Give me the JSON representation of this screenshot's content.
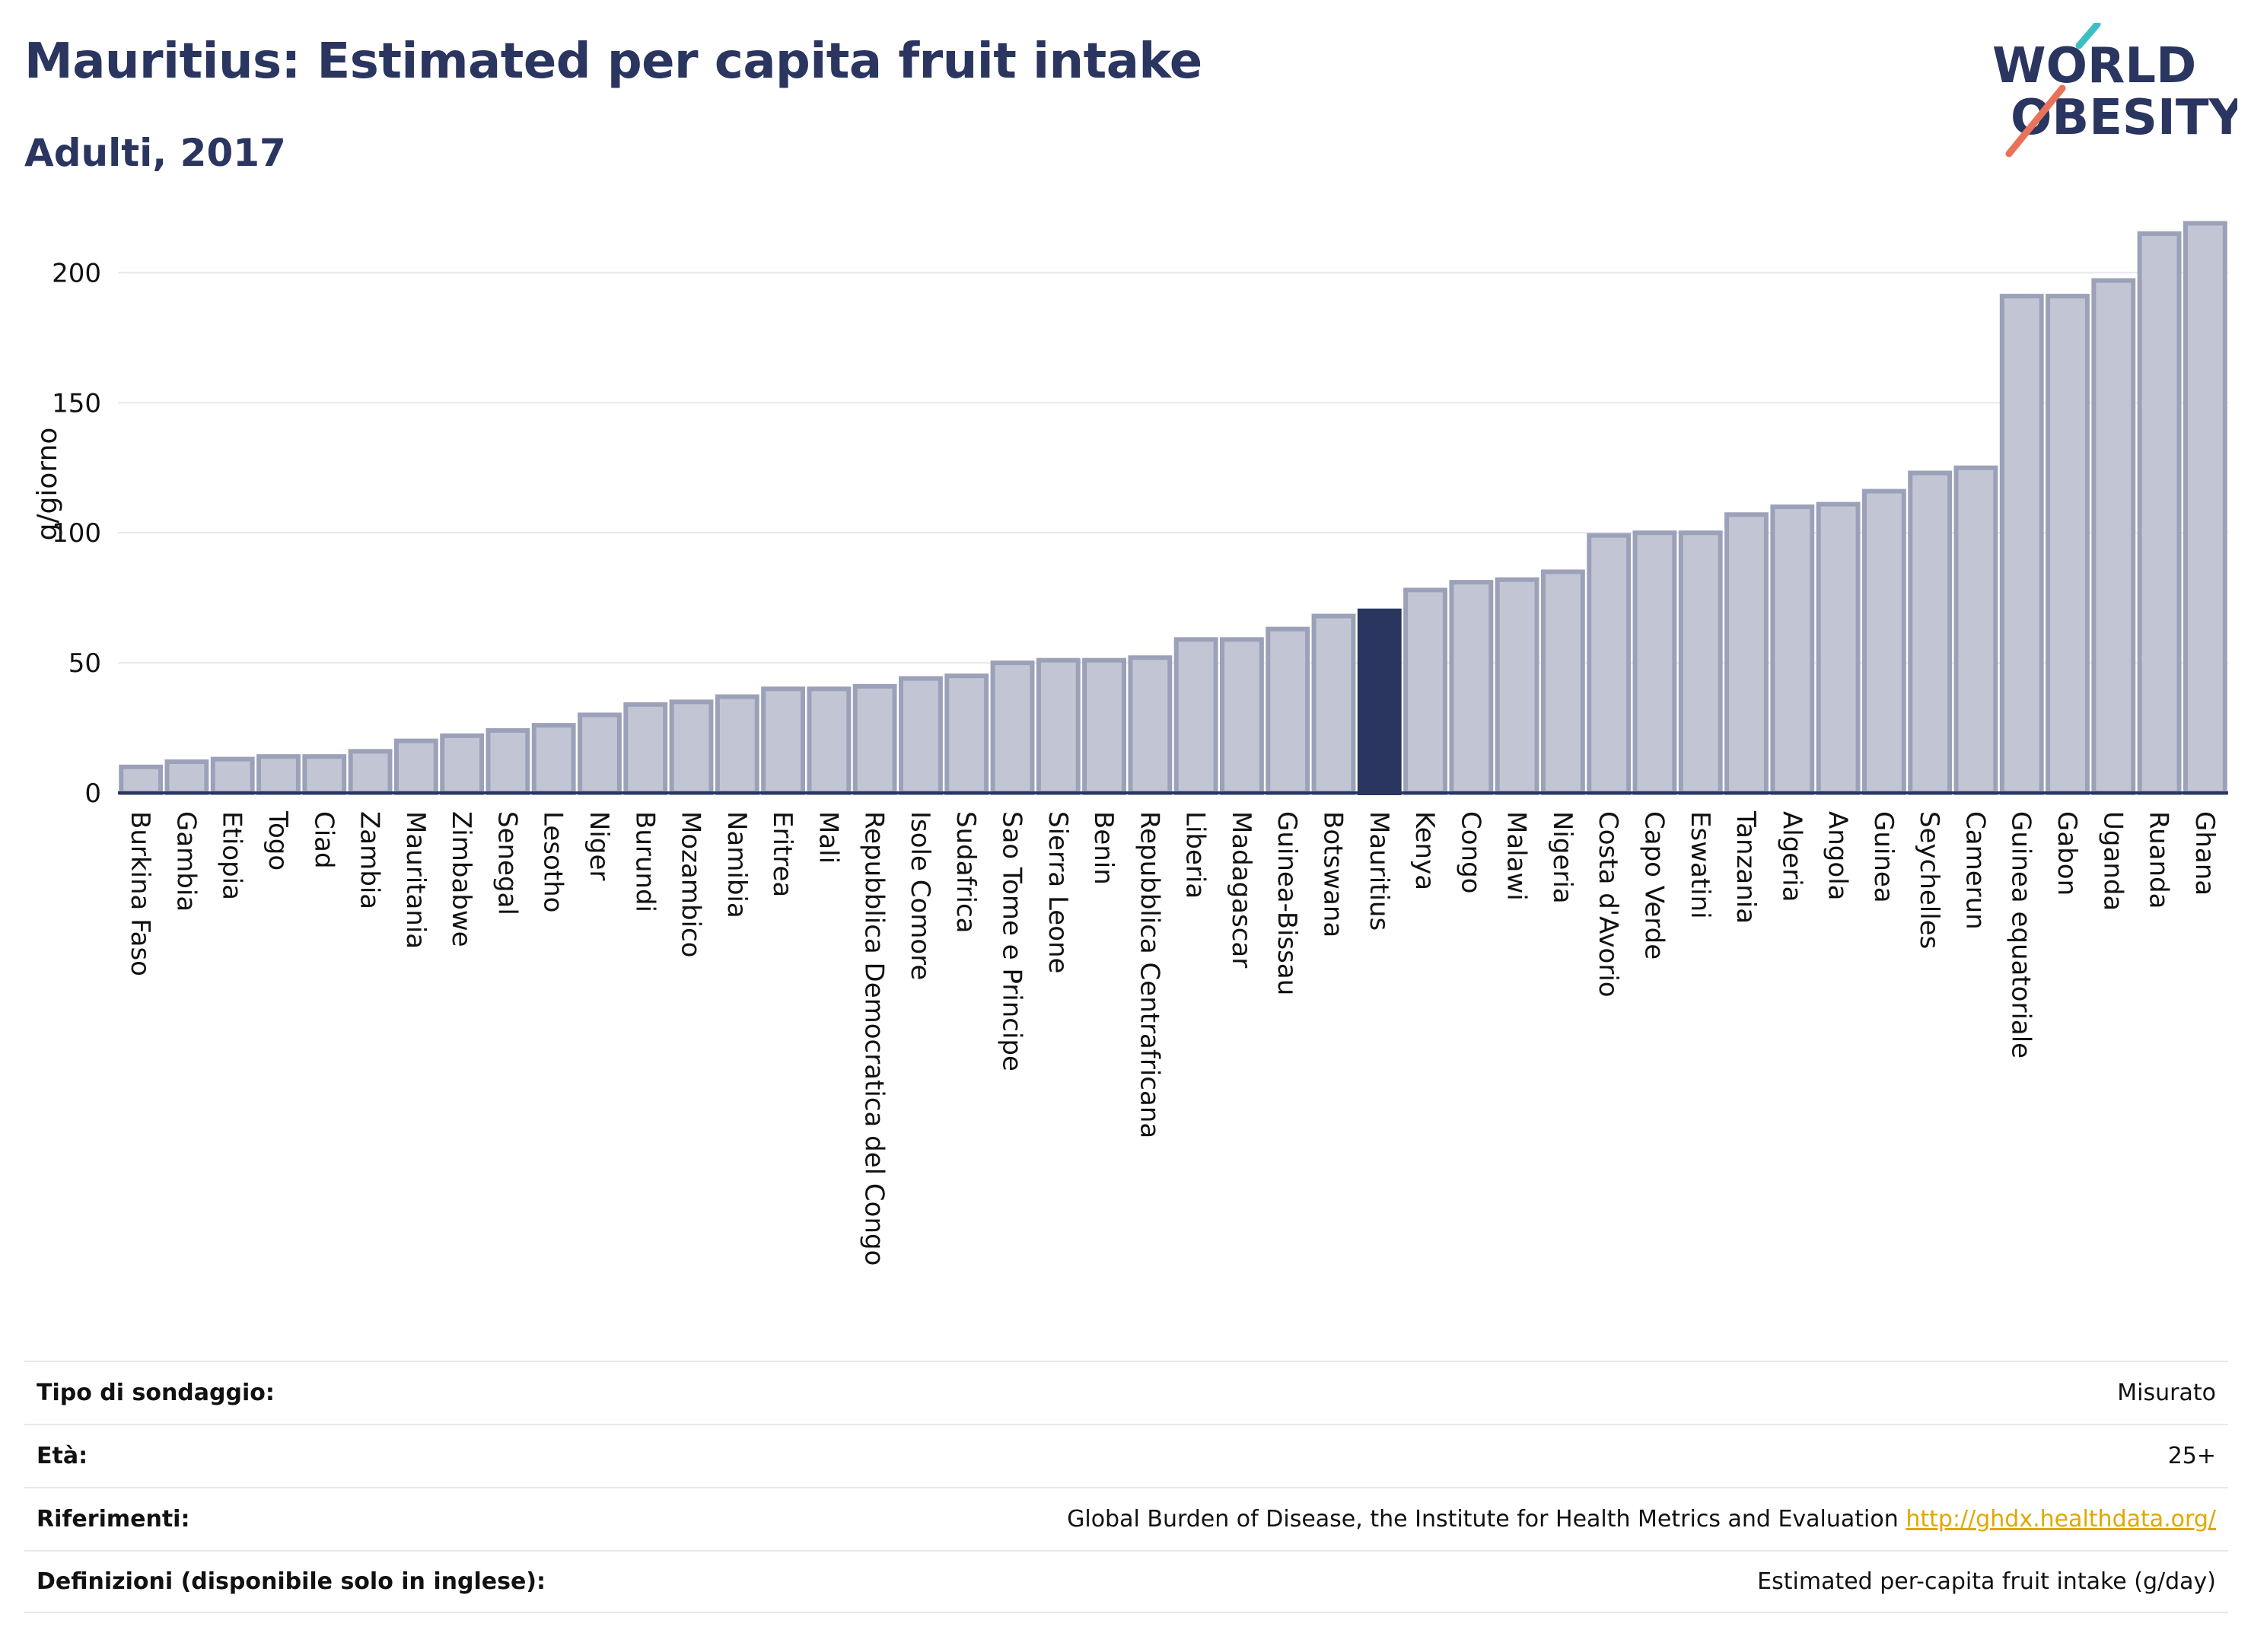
{
  "header": {
    "title": "Mauritius: Estimated per capita fruit intake",
    "subtitle": "Adulti, 2017"
  },
  "logo": {
    "line1": "WORLD",
    "line2": "OBESITY",
    "colors": {
      "text": "#2a3560",
      "slash_teal": "#3bbfc4",
      "slash_coral": "#e8735a"
    }
  },
  "chart_data": {
    "type": "bar",
    "ylabel": "g/giorno",
    "ylim": [
      0,
      220
    ],
    "yticks": [
      0,
      50,
      100,
      150,
      200
    ],
    "grid": true,
    "highlight": "Mauritius",
    "colors": {
      "bar": "#c2c6d4",
      "bar_edge": "#9ba1b8",
      "highlight": "#2a3560",
      "grid": "#e6e8ee",
      "axis": "#2a3560"
    },
    "categories": [
      "Burkina Faso",
      "Gambia",
      "Etiopia",
      "Togo",
      "Ciad",
      "Zambia",
      "Mauritania",
      "Zimbabwe",
      "Senegal",
      "Lesotho",
      "Niger",
      "Burundi",
      "Mozambico",
      "Namibia",
      "Eritrea",
      "Mali",
      "Repubblica Democratica del Congo",
      "Isole Comore",
      "Sudafrica",
      "Sao Tome e Principe",
      "Sierra Leone",
      "Benin",
      "Repubblica Centrafricana",
      "Liberia",
      "Madagascar",
      "Guinea-Bissau",
      "Botswana",
      "Mauritius",
      "Kenya",
      "Congo",
      "Malawi",
      "Nigeria",
      "Costa d'Avorio",
      "Capo Verde",
      "Eswatini",
      "Tanzania",
      "Algeria",
      "Angola",
      "Guinea",
      "Seychelles",
      "Camerun",
      "Guinea equatoriale",
      "Gabon",
      "Uganda",
      "Ruanda",
      "Ghana"
    ],
    "values": [
      10,
      12,
      13,
      14,
      14,
      16,
      20,
      22,
      24,
      26,
      30,
      34,
      35,
      37,
      40,
      40,
      41,
      44,
      45,
      50,
      51,
      51,
      52,
      59,
      59,
      63,
      68,
      70,
      78,
      81,
      82,
      85,
      99,
      100,
      100,
      107,
      110,
      111,
      116,
      123,
      125,
      191,
      191,
      197,
      215,
      219
    ]
  },
  "info": [
    {
      "label": "Tipo di sondaggio:",
      "value": "Misurato"
    },
    {
      "label": "Età:",
      "value": "25+"
    },
    {
      "label": "Riferimenti:",
      "value": "Global Burden of Disease, the Institute for Health Metrics and Evaluation",
      "link": "http://ghdx.healthdata.org/"
    },
    {
      "label": "Definizioni (disponibile solo in inglese):",
      "value": "Estimated per-capita fruit intake (g/day)"
    }
  ]
}
